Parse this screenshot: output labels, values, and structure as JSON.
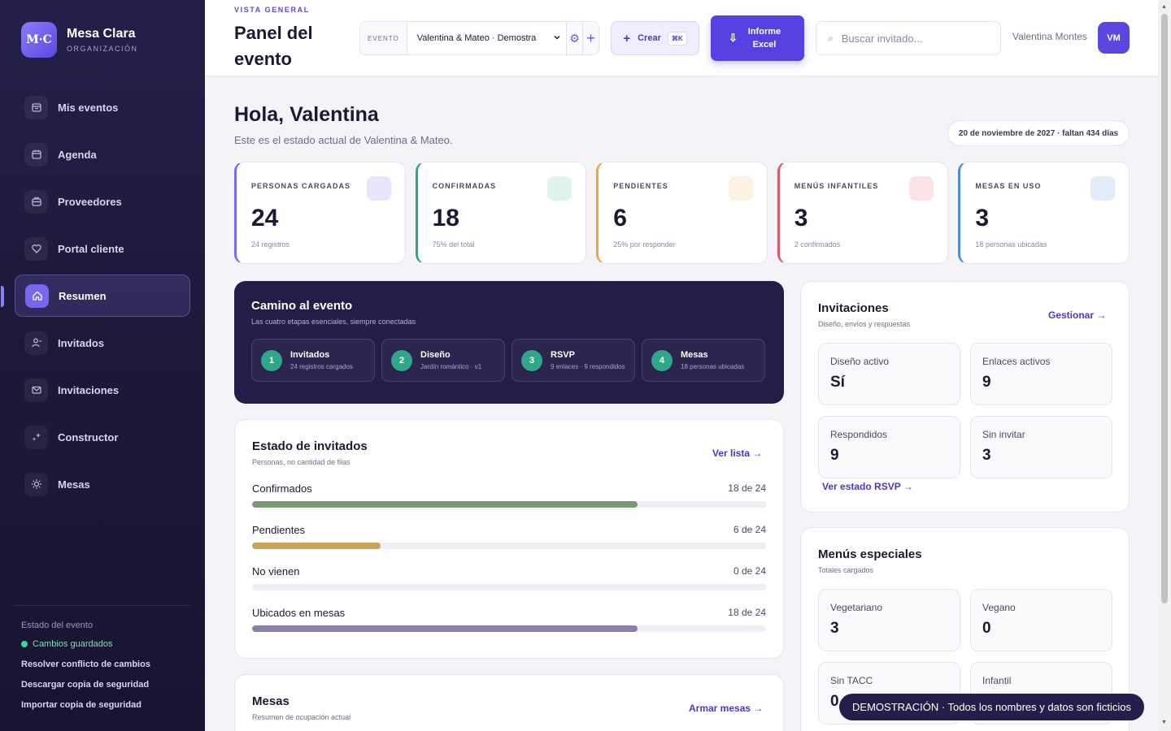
{
  "brand": {
    "logo": "M·C",
    "name": "Mesa Clara",
    "sub": "ORGANIZACIÓN"
  },
  "nav": [
    {
      "label": "Mis eventos",
      "icon": "calendar-stack-icon"
    },
    {
      "label": "Agenda",
      "icon": "calendar-icon"
    },
    {
      "label": "Proveedores",
      "icon": "briefcase-icon"
    },
    {
      "label": "Portal cliente",
      "icon": "heart-icon"
    },
    {
      "label": "Resumen",
      "icon": "home-icon",
      "active": true
    },
    {
      "label": "Invitados",
      "icon": "user-icon"
    },
    {
      "label": "Invitaciones",
      "icon": "mail-icon"
    },
    {
      "label": "Constructor",
      "icon": "sparkle-icon"
    },
    {
      "label": "Mesas",
      "icon": "sun-icon"
    }
  ],
  "sidebar_footer": {
    "title": "Estado del evento",
    "status": "Cambios guardados",
    "links": [
      "Resolver conflicto de cambios",
      "Descargar copia de seguridad",
      "Importar copia de seguridad"
    ]
  },
  "header": {
    "eyebrow": "VISTA GENERAL",
    "title": "Panel del evento",
    "event_label": "EVENTO",
    "event_value": "Valentina & Mateo · Demostra",
    "create_label": "Crear",
    "create_shortcut": "⌘K",
    "report_label": "Informe Excel",
    "search_placeholder": "Buscar invitado...",
    "user_name": "Valentina Montes",
    "user_initials": "VM"
  },
  "greeting": {
    "title": "Hola, Valentina",
    "subtitle": "Este es el estado actual de Valentina & Mateo.",
    "date": "20 de noviembre de 2027 · faltan 434 días"
  },
  "kpis": [
    {
      "label": "PERSONAS CARGADAS",
      "value": "24",
      "note": "24 registros",
      "color": "#7a6cf0",
      "chip": "#e8e5fd"
    },
    {
      "label": "CONFIRMADAS",
      "value": "18",
      "note": "75% del total",
      "color": "#2aa886",
      "chip": "#dff3ee"
    },
    {
      "label": "PENDIENTES",
      "value": "6",
      "note": "25% por responder",
      "color": "#f0a53e",
      "chip": "#fdf1e1"
    },
    {
      "label": "MENÚS INFANTILES",
      "value": "3",
      "note": "2 confirmados",
      "color": "#e0566e",
      "chip": "#fbe3e8"
    },
    {
      "label": "MESAS EN USO",
      "value": "3",
      "note": "18 personas ubicadas",
      "color": "#4a90d9",
      "chip": "#e2edf9"
    }
  ],
  "journey": {
    "title": "Camino al evento",
    "subtitle": "Las cuatro etapas esenciales, siempre conectadas",
    "steps": [
      {
        "num": "1",
        "title": "Invitados",
        "sub": "24 registros cargados"
      },
      {
        "num": "2",
        "title": "Diseño",
        "sub": "Jardín romántico · v1"
      },
      {
        "num": "3",
        "title": "RSVP",
        "sub": "9 enlaces · 9 respondidos"
      },
      {
        "num": "4",
        "title": "Mesas",
        "sub": "18 personas ubicadas"
      }
    ]
  },
  "guests": {
    "title": "Estado de invitados",
    "subtitle": "Personas, no cantidad de filas",
    "link": "Ver lista →",
    "rows": [
      {
        "label": "Confirmados",
        "count": "18 de 24",
        "fraction": 0.75,
        "color": "#7a9876"
      },
      {
        "label": "Pendientes",
        "count": "6 de 24",
        "fraction": 0.25,
        "color": "#c9a45b"
      },
      {
        "label": "No vienen",
        "count": "0 de 24",
        "fraction": 0,
        "color": "#d07b7b"
      },
      {
        "label": "Ubicados en mesas",
        "count": "18 de 24",
        "fraction": 0.75,
        "color": "#8c7fa8"
      }
    ]
  },
  "tables": {
    "title": "Mesas",
    "subtitle": "Resumen de ocupación actual",
    "link": "Armar mesas →"
  },
  "invitations": {
    "title": "Invitaciones",
    "subtitle": "Diseño, envíos y respuestas",
    "link": "Gestionar →",
    "stats": [
      {
        "label": "Diseño activo",
        "value": "Sí"
      },
      {
        "label": "Enlaces activos",
        "value": "9"
      },
      {
        "label": "Respondidos",
        "value": "9"
      },
      {
        "label": "Sin invitar",
        "value": "3"
      }
    ],
    "footer_link": "Ver estado RSVP →"
  },
  "menus": {
    "title": "Menús especiales",
    "subtitle": "Totales cargados",
    "stats": [
      {
        "label": "Vegetariano",
        "value": "3"
      },
      {
        "label": "Vegano",
        "value": "0"
      },
      {
        "label": "Sin TACC",
        "value": "0"
      },
      {
        "label": "Infantil",
        "value": ""
      }
    ]
  },
  "toast": "DEMOSTRACIÓN · Todos los nombres y datos son ficticios"
}
